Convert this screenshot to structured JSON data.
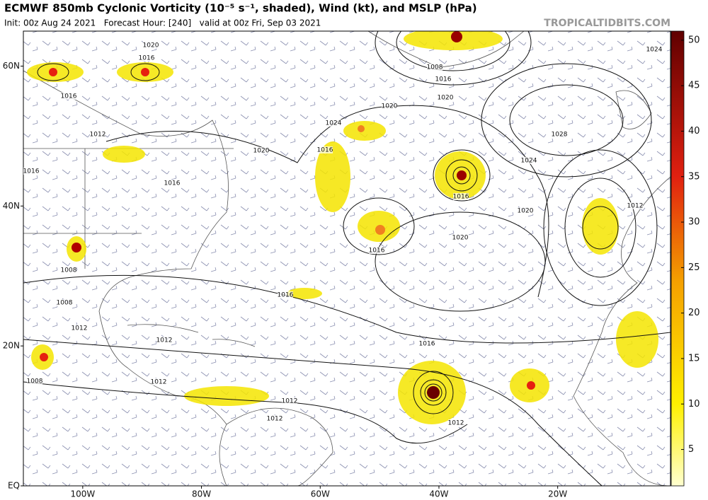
{
  "header": {
    "title": "ECMWF 850mb Cyclonic Vorticity (10⁻⁵ s⁻¹, shaded), Wind (kt), and MSLP (hPa)",
    "subtitle": "Init: 00z Aug 24 2021   Forecast Hour: [240]   valid at 00z Fri, Sep 03 2021",
    "credit": "TROPICALTIDBITS.COM"
  },
  "map": {
    "latlim": [
      0,
      65
    ],
    "lonlim": [
      -110,
      -1
    ],
    "lat_ticks": [
      {
        "value": 60,
        "label": "60N"
      },
      {
        "value": 40,
        "label": "40N"
      },
      {
        "value": 20,
        "label": "20N"
      },
      {
        "value": 0,
        "label": "EQ"
      }
    ],
    "lon_ticks": [
      {
        "value": -100,
        "label": "100W"
      },
      {
        "value": -80,
        "label": "80W"
      },
      {
        "value": -60,
        "label": "60W"
      },
      {
        "value": -40,
        "label": "40W"
      },
      {
        "value": -20,
        "label": "20W"
      }
    ],
    "isobar_labels": [
      1020,
      1016,
      1016,
      1012,
      1016,
      1016,
      1020,
      1016,
      1024,
      1020,
      1008,
      1016,
      1020,
      1024,
      1028,
      1024,
      1020,
      1016,
      1016,
      1020,
      1012,
      1016,
      1008,
      1008,
      1012,
      1012,
      1016,
      1012,
      1012,
      1012,
      1012,
      1008
    ]
  },
  "colorbar": {
    "range": [
      1,
      51
    ],
    "ticks": [
      5,
      10,
      15,
      20,
      25,
      30,
      35,
      40,
      45,
      50
    ]
  }
}
